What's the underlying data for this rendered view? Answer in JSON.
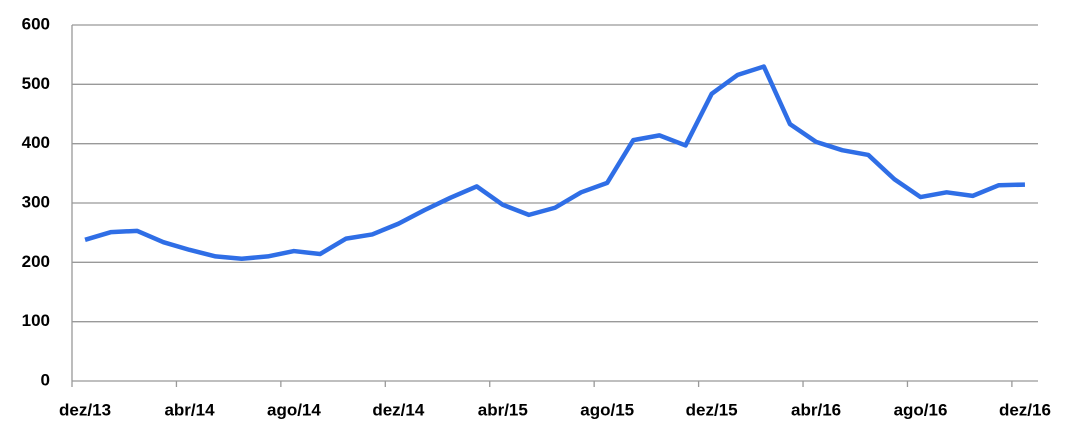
{
  "chart_data": {
    "type": "line",
    "categories": [
      "dez/13",
      null,
      null,
      null,
      "abr/14",
      null,
      null,
      null,
      "ago/14",
      null,
      null,
      null,
      "dez/14",
      null,
      null,
      null,
      "abr/15",
      null,
      null,
      null,
      "ago/15",
      null,
      null,
      null,
      "dez/15",
      null,
      null,
      null,
      "abr/16",
      null,
      null,
      null,
      "ago/16",
      null,
      null,
      null,
      "dez/16"
    ],
    "series": [
      {
        "color": "#2f6ee6",
        "values": [
          238,
          251,
          253,
          234,
          221,
          210,
          206,
          210,
          219,
          214,
          240,
          247,
          265,
          288,
          309,
          328,
          297,
          280,
          292,
          318,
          334,
          406,
          414,
          397,
          484,
          516,
          530,
          433,
          403,
          389,
          381,
          340,
          310,
          318,
          312,
          330,
          331
        ]
      }
    ],
    "ylim": [
      0,
      600
    ],
    "yticks": [
      0,
      100,
      200,
      300,
      400,
      500,
      600
    ],
    "grid": true
  }
}
